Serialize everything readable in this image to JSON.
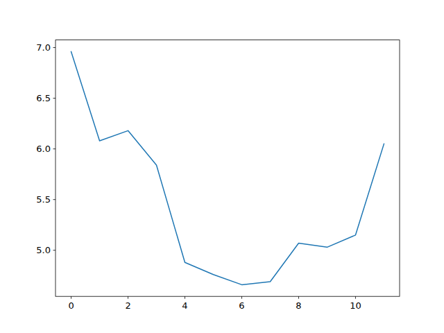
{
  "chart_data": {
    "type": "line",
    "color": "#1f77b4",
    "x": [
      0,
      1,
      2,
      3,
      4,
      5,
      6,
      7,
      8,
      9,
      10,
      11
    ],
    "values": [
      6.96,
      6.08,
      6.18,
      5.84,
      4.88,
      4.76,
      4.66,
      4.69,
      5.07,
      5.03,
      5.15,
      6.05
    ],
    "xlim": [
      -0.55,
      11.55
    ],
    "xticks": [
      0,
      2,
      4,
      6,
      8,
      10
    ],
    "ylim": [
      4.545,
      7.075
    ],
    "yticks": [
      {
        "value": 5.0,
        "label": "5.0"
      },
      5.5,
      {
        "value": 6.0,
        "label": "6.0"
      },
      6.5,
      {
        "value": 7.0,
        "label": "7.0"
      }
    ],
    "grid": false
  }
}
